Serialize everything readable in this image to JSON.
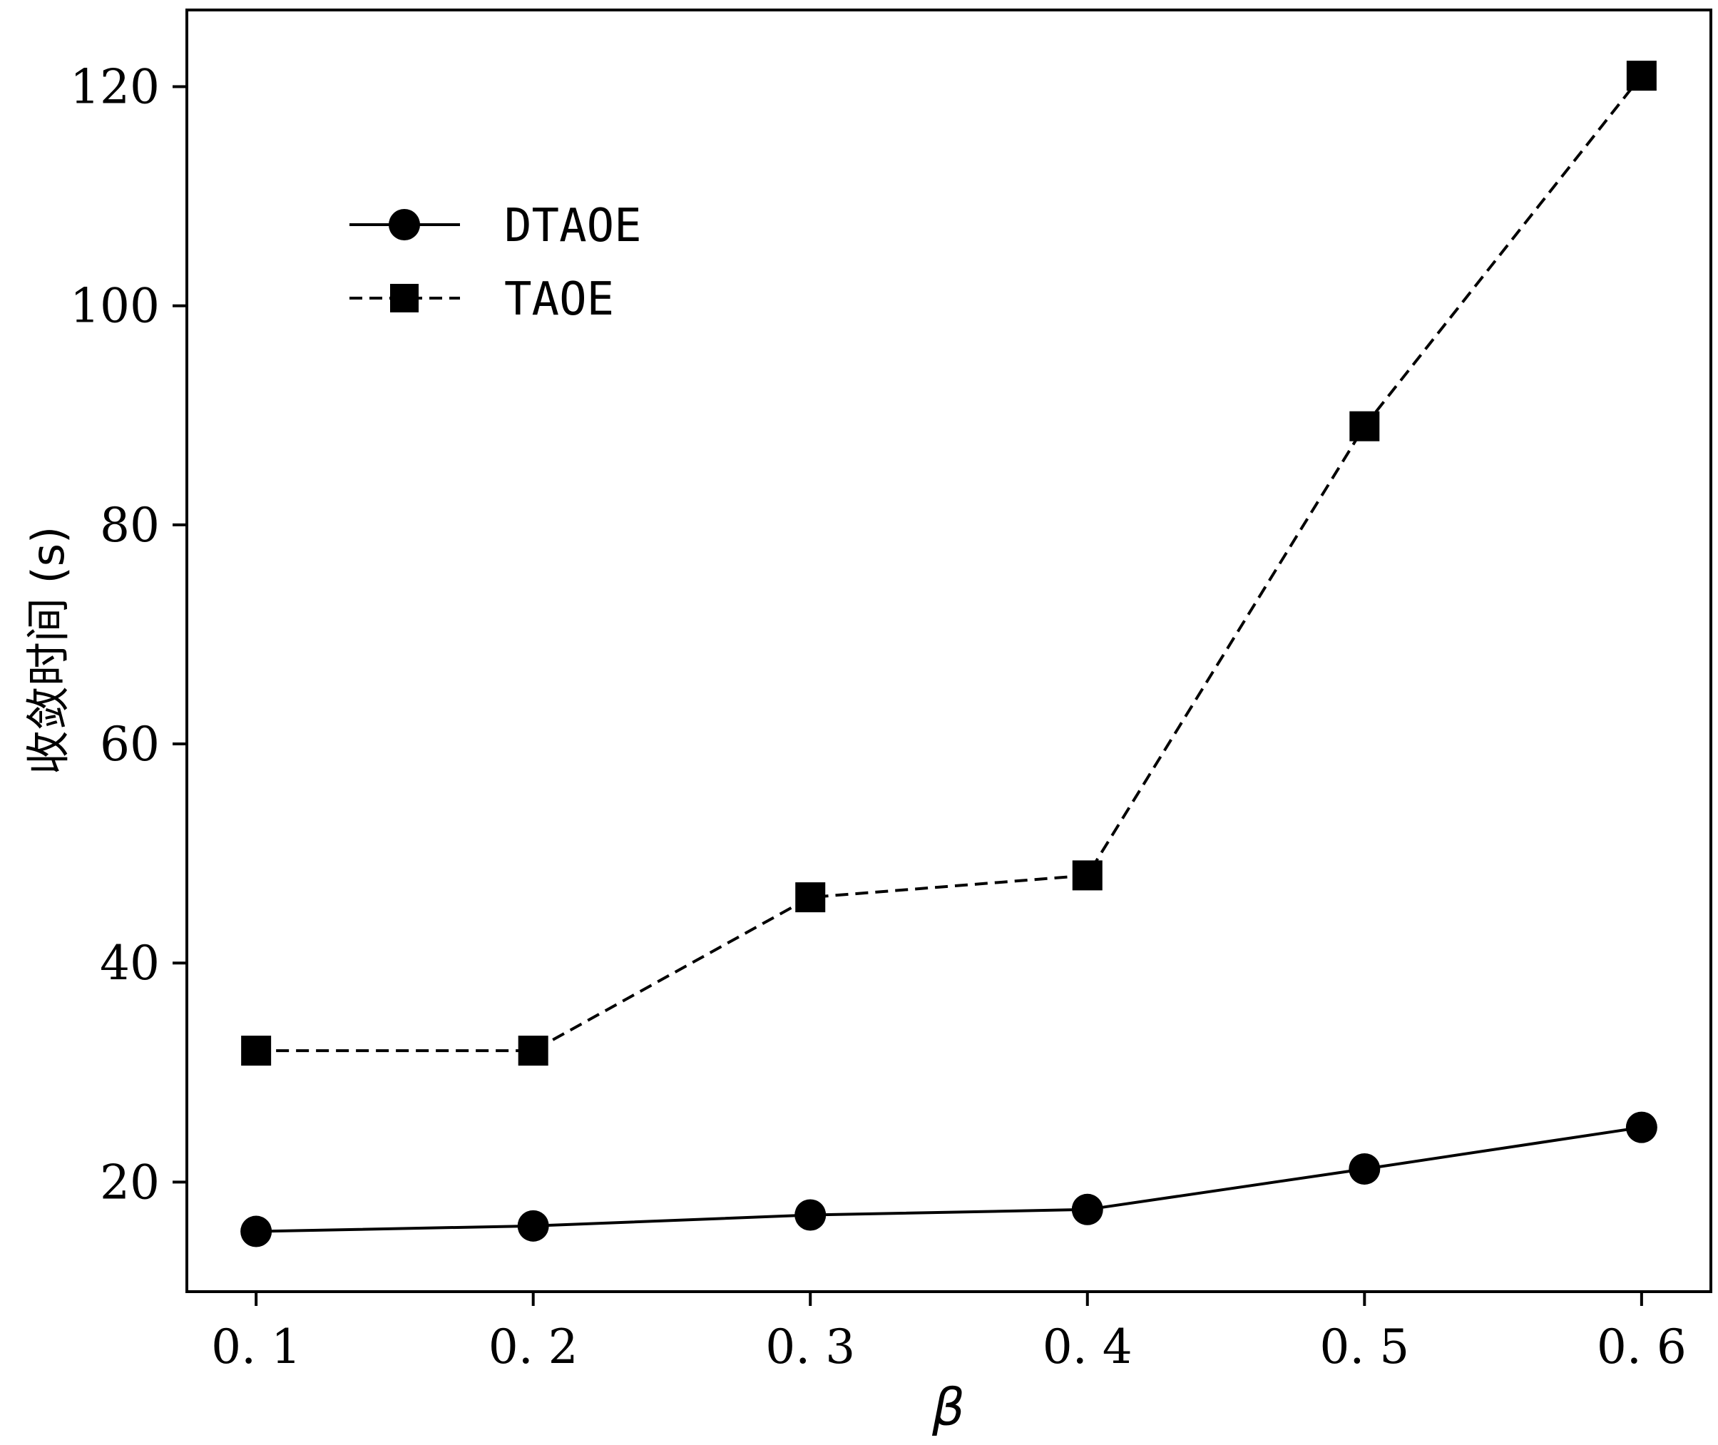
{
  "chart_data": {
    "type": "line",
    "xlabel": "β",
    "ylabel": "收敛时间 (s)",
    "x_ticks": [
      "0. 1",
      "0. 2",
      "0. 3",
      "0. 4",
      "0. 5",
      "0. 6"
    ],
    "y_ticks": [
      "20",
      "40",
      "60",
      "80",
      "100",
      "120"
    ],
    "xlim": [
      0.075,
      0.625
    ],
    "ylim": [
      10,
      127
    ],
    "grid": false,
    "legend_position": "upper-left",
    "series": [
      {
        "name": "DTAOE",
        "marker": "circle",
        "line_style": "solid",
        "color": "#000000",
        "x": [
          0.1,
          0.2,
          0.3,
          0.4,
          0.5,
          0.6
        ],
        "values": [
          15.5,
          16.0,
          17.0,
          17.5,
          21.2,
          25.0
        ]
      },
      {
        "name": "TAOE",
        "marker": "square",
        "line_style": "dashed",
        "color": "#000000",
        "x": [
          0.1,
          0.2,
          0.3,
          0.4,
          0.5,
          0.6
        ],
        "values": [
          32,
          32,
          46,
          48,
          89,
          121
        ]
      }
    ]
  }
}
